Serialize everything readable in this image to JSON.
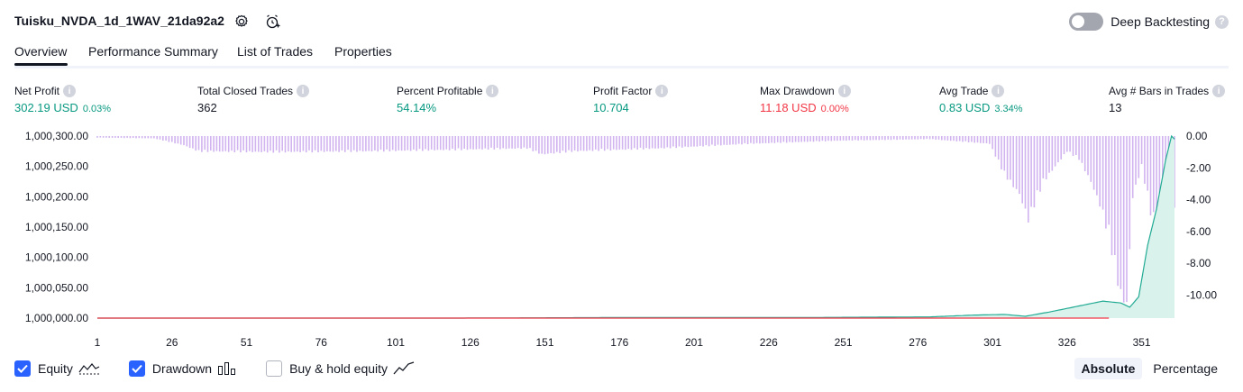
{
  "header": {
    "title": "Tuisku_NVDA_1d_1WAV_21da92a2",
    "settings_icon": "gear-icon",
    "alert_icon": "add-alert-icon",
    "deep_backtesting_label": "Deep Backtesting",
    "deep_backtesting_enabled": false
  },
  "tabs": [
    {
      "label": "Overview",
      "active": true
    },
    {
      "label": "Performance Summary",
      "active": false
    },
    {
      "label": "List of Trades",
      "active": false
    },
    {
      "label": "Properties",
      "active": false
    }
  ],
  "metrics": [
    {
      "label": "Net Profit",
      "value": "302.19 USD",
      "pct": "0.03%",
      "color": "#089981"
    },
    {
      "label": "Total Closed Trades",
      "value": "362",
      "pct": "",
      "color": "#131722"
    },
    {
      "label": "Percent Profitable",
      "value": "54.14%",
      "pct": "",
      "color": "#089981"
    },
    {
      "label": "Profit Factor",
      "value": "10.704",
      "pct": "",
      "color": "#089981"
    },
    {
      "label": "Max Drawdown",
      "value": "11.18 USD",
      "pct": "0.00%",
      "color": "#f23645"
    },
    {
      "label": "Avg Trade",
      "value": "0.83 USD",
      "pct": "3.34%",
      "color": "#089981"
    },
    {
      "label": "Avg # Bars in Trades",
      "value": "13",
      "pct": "",
      "color": "#131722"
    }
  ],
  "legend": {
    "equity_label": "Equity",
    "equity_checked": true,
    "drawdown_label": "Drawdown",
    "drawdown_checked": true,
    "buyhold_label": "Buy & hold equity",
    "buyhold_checked": false
  },
  "mode": {
    "absolute_label": "Absolute",
    "percentage_label": "Percentage",
    "active": "absolute"
  },
  "chart_data": {
    "type": "area",
    "left_axis_ticks": [
      "1,000,300.00",
      "1,000,250.00",
      "1,000,200.00",
      "1,000,150.00",
      "1,000,100.00",
      "1,000,050.00",
      "1,000,000.00"
    ],
    "right_axis_ticks": [
      "0.00",
      "-2.00",
      "-4.00",
      "-6.00",
      "-8.00",
      "-10.00"
    ],
    "x_ticks": [
      "1",
      "26",
      "51",
      "76",
      "101",
      "126",
      "151",
      "176",
      "201",
      "226",
      "251",
      "276",
      "301",
      "326",
      "351"
    ],
    "equity_ylim": [
      1000000,
      1000300
    ],
    "drawdown_ylim": [
      -11,
      0
    ],
    "trade_count": 362,
    "equity_points": [
      [
        1,
        1000000
      ],
      [
        60,
        1000000
      ],
      [
        120,
        1000000
      ],
      [
        180,
        1000001
      ],
      [
        240,
        1000001
      ],
      [
        280,
        1000002
      ],
      [
        295,
        1000005
      ],
      [
        305,
        1000006
      ],
      [
        312,
        1000003
      ],
      [
        320,
        1000010
      ],
      [
        330,
        1000020
      ],
      [
        338,
        1000028
      ],
      [
        344,
        1000025
      ],
      [
        347,
        1000018
      ],
      [
        350,
        1000035
      ],
      [
        353,
        1000120
      ],
      [
        356,
        1000180
      ],
      [
        359,
        1000260
      ],
      [
        361,
        1000300
      ],
      [
        362,
        1000295
      ]
    ],
    "drawdown_points": [
      [
        1,
        -0.1
      ],
      [
        20,
        -0.15
      ],
      [
        30,
        -0.6
      ],
      [
        35,
        -1.0
      ],
      [
        60,
        -1.05
      ],
      [
        90,
        -1.0
      ],
      [
        120,
        -0.9
      ],
      [
        145,
        -0.8
      ],
      [
        150,
        -1.2
      ],
      [
        160,
        -1.0
      ],
      [
        190,
        -0.8
      ],
      [
        220,
        -0.5
      ],
      [
        250,
        -0.3
      ],
      [
        280,
        -0.2
      ],
      [
        300,
        -0.5
      ],
      [
        305,
        -2.5
      ],
      [
        310,
        -3.8
      ],
      [
        313,
        -5.5
      ],
      [
        318,
        -3.0
      ],
      [
        322,
        -2.0
      ],
      [
        326,
        -1.0
      ],
      [
        330,
        -1.5
      ],
      [
        334,
        -3.0
      ],
      [
        337,
        -4.5
      ],
      [
        340,
        -6.5
      ],
      [
        342,
        -8.5
      ],
      [
        344,
        -10.5
      ],
      [
        346,
        -11.0
      ],
      [
        348,
        -4.0
      ],
      [
        351,
        -2.0
      ],
      [
        354,
        -5.0
      ],
      [
        357,
        -6.0
      ],
      [
        360,
        -3.0
      ],
      [
        362,
        -5.0
      ]
    ],
    "colors": {
      "equity_line": "#22ab94",
      "equity_fill": "#d9f2ec",
      "drawdown_bar": "#d1b3f0",
      "buyhold_line": "#f23645"
    }
  }
}
